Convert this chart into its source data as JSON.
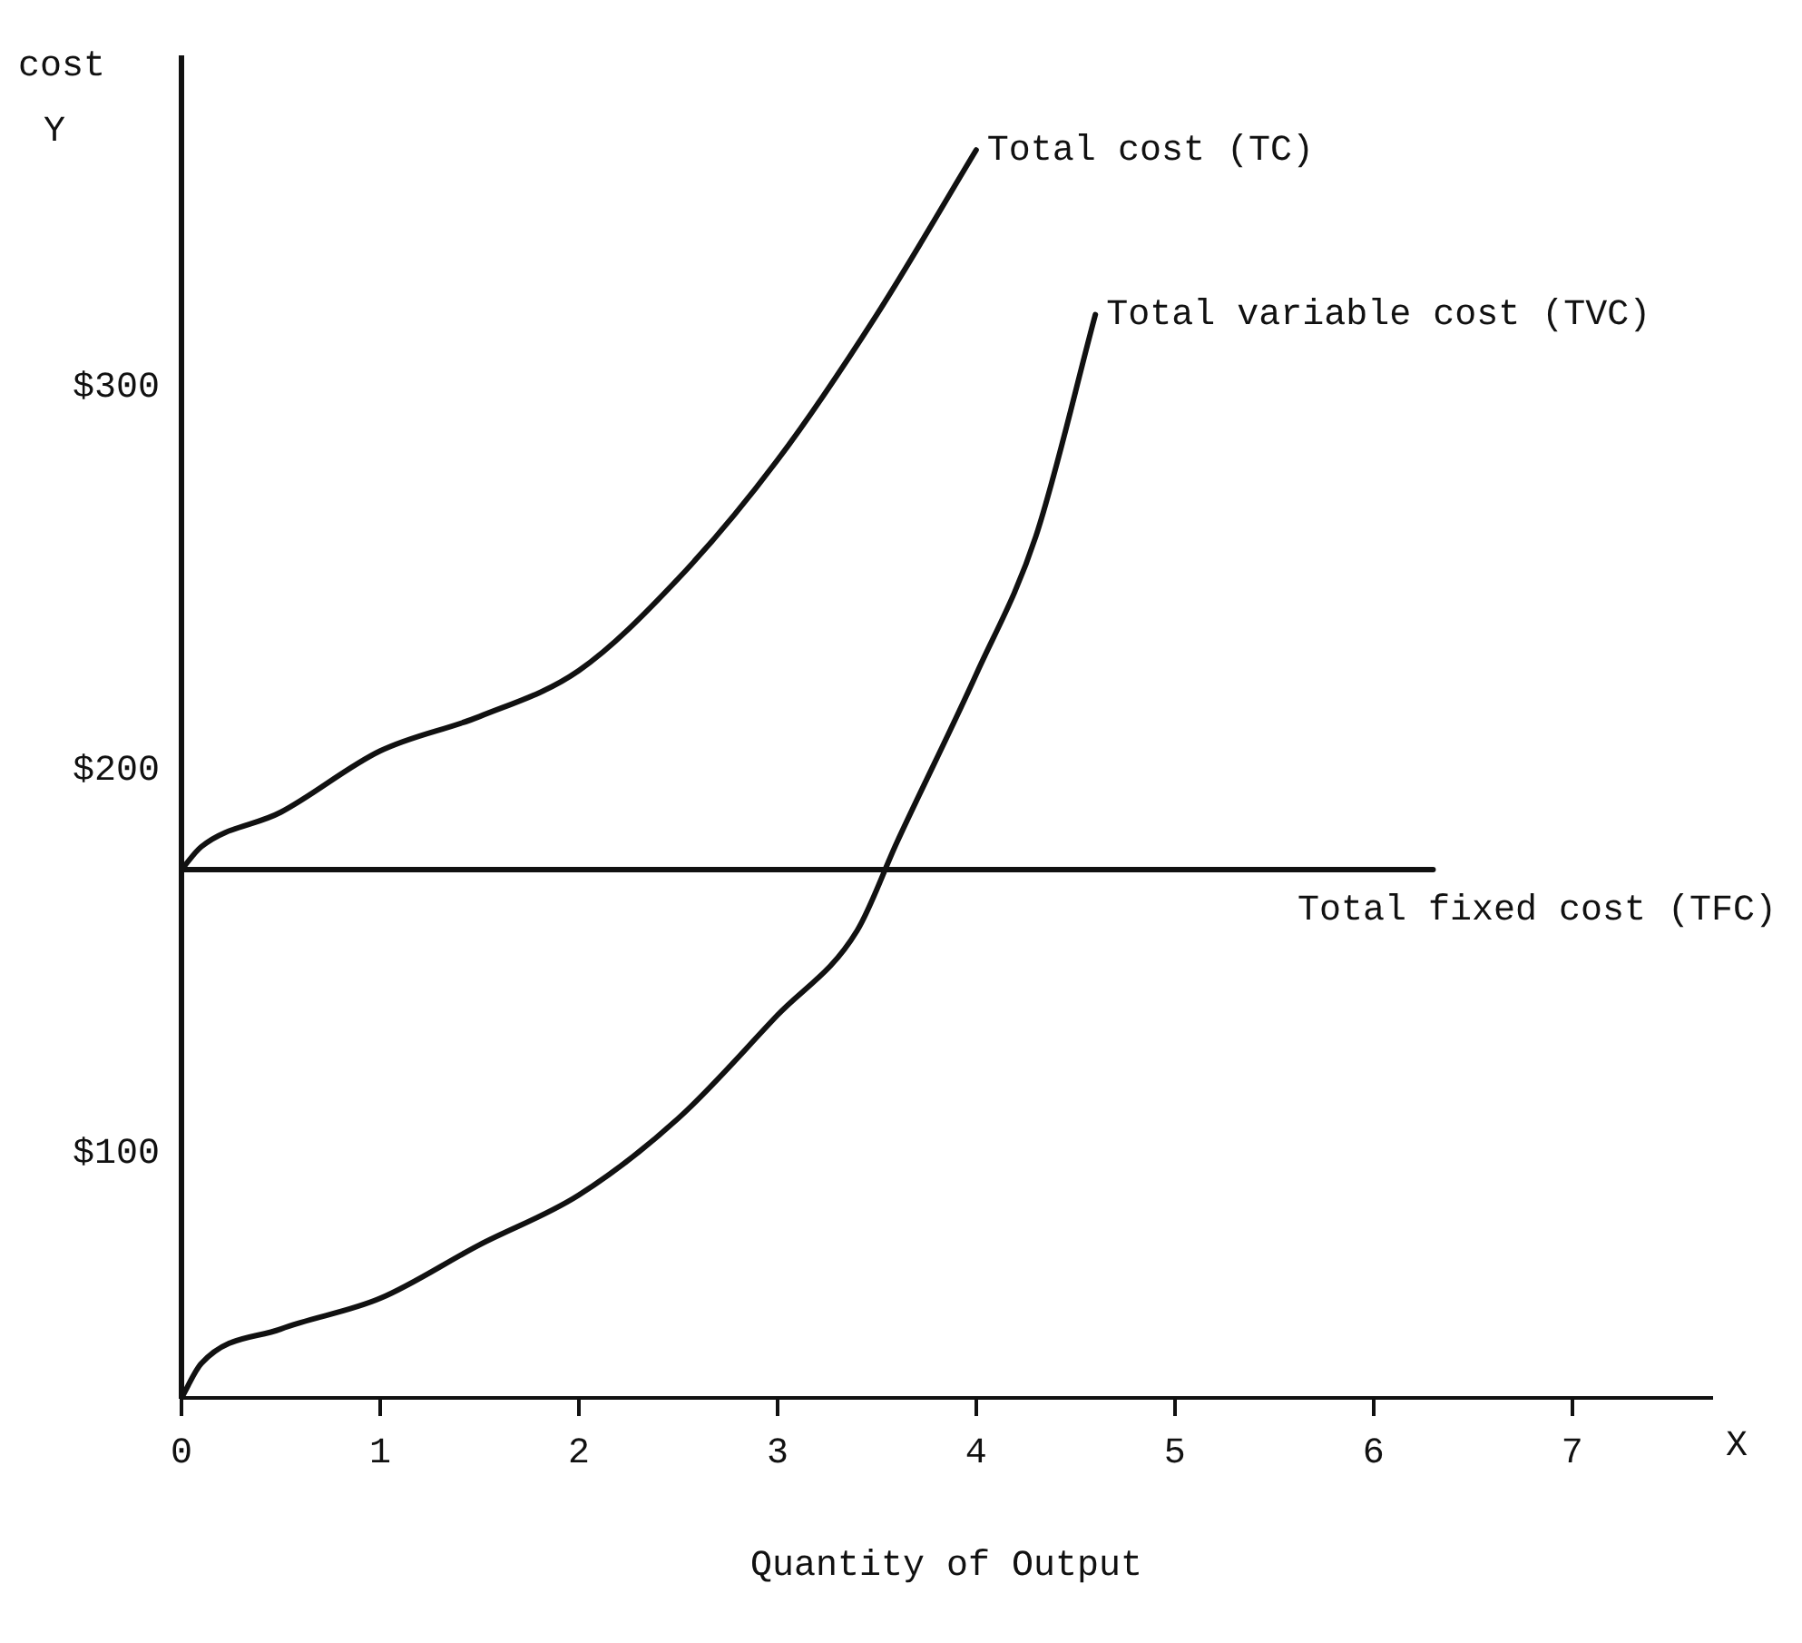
{
  "chart_data": {
    "type": "line",
    "xlabel": "Quantity of Output",
    "ylabel": "cost",
    "annotations": [
      "X",
      "Y"
    ],
    "xlim": [
      0,
      7.7
    ],
    "ylim": [
      36,
      386
    ],
    "xticks": [
      0,
      1,
      2,
      3,
      4,
      5,
      6,
      7
    ],
    "yticks": [
      {
        "value": 100,
        "label": "$100"
      },
      {
        "value": 200,
        "label": "$200"
      },
      {
        "value": 300,
        "label": "$300"
      }
    ],
    "grid": false,
    "legend": false,
    "marker": "none",
    "line_style": "solid",
    "series": [
      {
        "name": "Total cost (TC)",
        "color": "#111111",
        "x": [
          0,
          0.1,
          0.5,
          1,
          1.5,
          2,
          2.5,
          3,
          3.5,
          4
        ],
        "values": [
          174,
          180,
          189,
          205,
          214,
          226,
          250,
          281,
          319,
          362
        ]
      },
      {
        "name": "Total variable cost (TVC)",
        "color": "#111111",
        "x": [
          0,
          0.1,
          0.5,
          1,
          1.5,
          2,
          2.5,
          3,
          3.4,
          3.6,
          4,
          4.3,
          4.6
        ],
        "values": [
          36,
          45,
          54,
          62,
          76,
          89,
          109,
          136,
          158,
          181,
          225,
          261,
          319
        ]
      },
      {
        "name": "Total fixed cost (TFC)",
        "color": "#111111",
        "x": [
          0,
          6.3
        ],
        "values": [
          174,
          174
        ]
      }
    ]
  }
}
